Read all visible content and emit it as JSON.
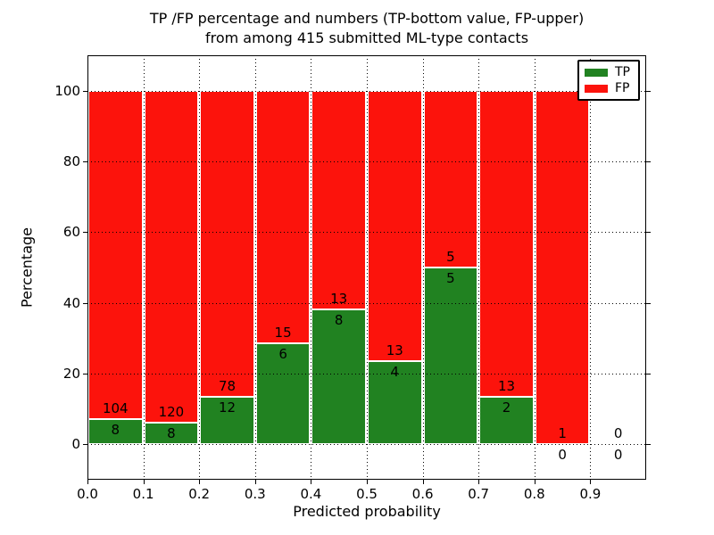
{
  "title": {
    "line1": "TP /FP percentage and numbers (TP-bottom value, FP-upper)",
    "line2": "from among 415 submitted ML-type contacts"
  },
  "axes": {
    "xlabel": "Predicted probability",
    "ylabel": "Percentage",
    "xticks": [
      "0.0",
      "0.1",
      "0.2",
      "0.3",
      "0.4",
      "0.5",
      "0.6",
      "0.7",
      "0.8",
      "0.9"
    ],
    "yticks": [
      "0",
      "20",
      "40",
      "60",
      "80",
      "100"
    ]
  },
  "legend": {
    "items": [
      {
        "label": "TP",
        "color": "#218221"
      },
      {
        "label": "FP",
        "color": "#fc130c"
      }
    ]
  },
  "colors": {
    "tp": "#218221",
    "fp": "#fc130c",
    "frame": "#000000",
    "background": "#ffffff"
  },
  "chart_data": {
    "type": "bar",
    "stacked": true,
    "title": "TP /FP percentage and numbers (TP-bottom value, FP-upper) from among 415 submitted ML-type contacts",
    "xlabel": "Predicted probability",
    "ylabel": "Percentage",
    "bin_starts": [
      0.0,
      0.1,
      0.2,
      0.3,
      0.4,
      0.5,
      0.6,
      0.7,
      0.8,
      0.9
    ],
    "bin_width": 0.1,
    "series": [
      {
        "name": "TP",
        "color": "#218221",
        "counts": [
          8,
          8,
          12,
          6,
          8,
          4,
          5,
          2,
          0,
          0
        ]
      },
      {
        "name": "FP",
        "color": "#fc130c",
        "counts": [
          104,
          120,
          78,
          15,
          13,
          13,
          5,
          13,
          1,
          0
        ]
      }
    ],
    "bar_heights_note": "each bin drawn as TP and FP percentage of that bin total (stacked to 100%); count labels printed at the TP/FP boundary",
    "tp_percent_per_bin": [
      7.14,
      6.25,
      13.33,
      28.57,
      38.1,
      23.53,
      50.0,
      13.33,
      0.0,
      0.0
    ],
    "total_contacts": 415,
    "xlim": [
      0.0,
      1.0
    ],
    "ylim": [
      -10,
      110
    ],
    "yticks": [
      0,
      20,
      40,
      60,
      80,
      100
    ],
    "grid": "dotted",
    "legend_position": "upper right",
    "legend": [
      "TP",
      "FP"
    ]
  }
}
